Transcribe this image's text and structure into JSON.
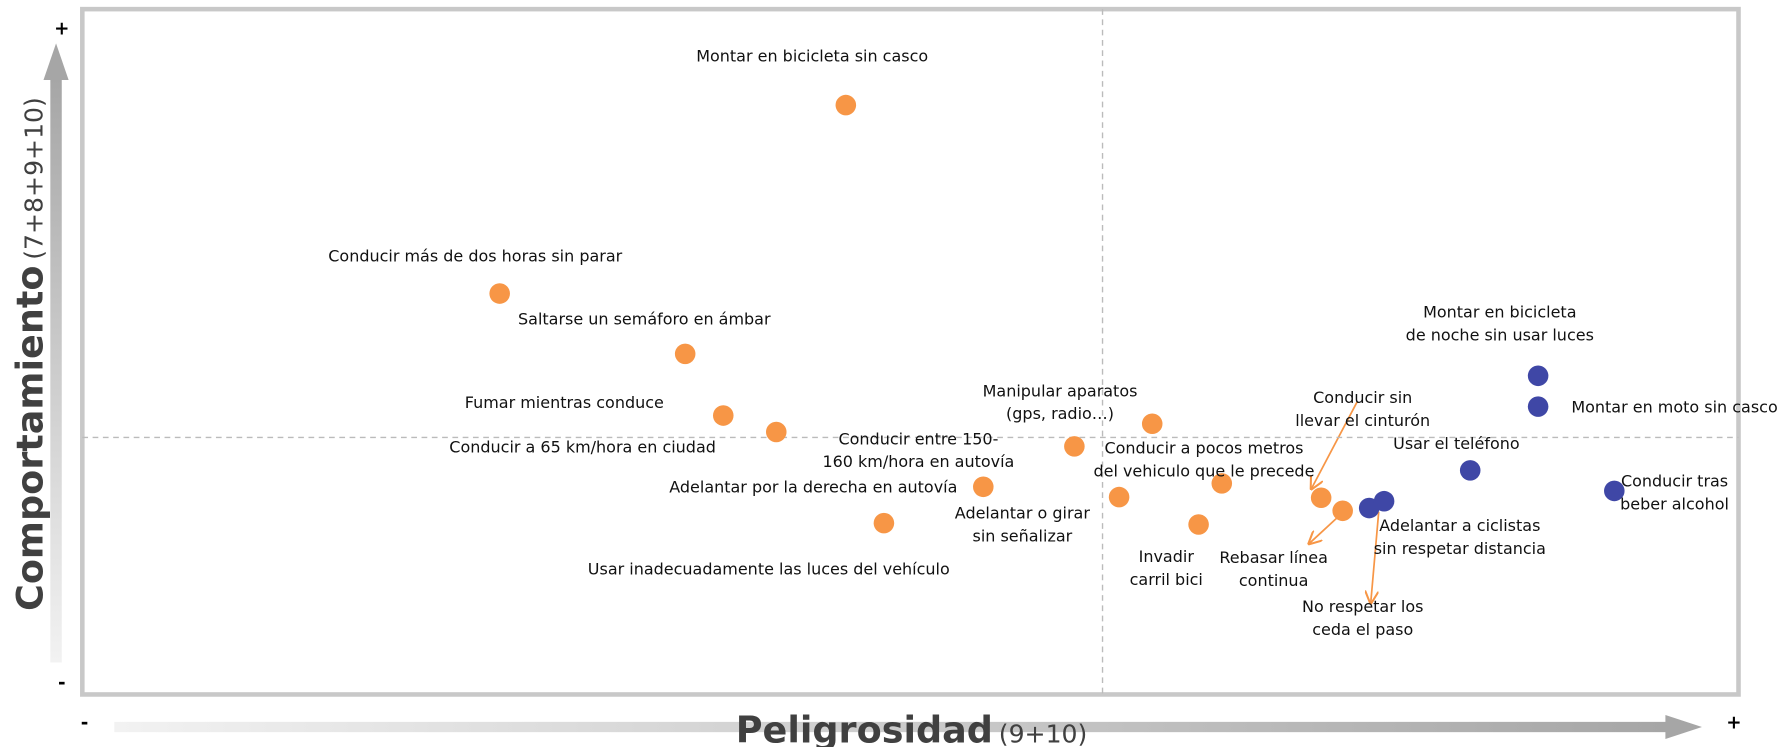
{
  "chart_data": {
    "type": "scatter",
    "xlabel": "Peligrosidad",
    "xlabel_note": "(9+10)",
    "ylabel": "Comportamiento",
    "ylabel_note": "(7+8+9+10)",
    "x_low": "-",
    "x_high": "+",
    "y_low": "-",
    "y_high": "+",
    "xlim": [
      0,
      100
    ],
    "ylim": [
      0,
      100
    ],
    "xdivider": 61.6,
    "ydivider": 37.5,
    "points": [
      {
        "label": [
          "Montar en bicicleta sin casco"
        ],
        "x": 46.1,
        "y": 86.0,
        "color": "#f79646"
      },
      {
        "label": [
          "Conducir más de dos horas sin parar"
        ],
        "x": 25.2,
        "y": 58.5,
        "color": "#f79646"
      },
      {
        "label": [
          "Saltarse un semáforo en ámbar"
        ],
        "x": 36.4,
        "y": 49.7,
        "color": "#f79646"
      },
      {
        "label": [
          "Fumar mientras conduce"
        ],
        "x": 38.7,
        "y": 40.7,
        "color": "#f79646"
      },
      {
        "label": [
          "Conducir a 65 km/hora en ciudad"
        ],
        "x": 41.9,
        "y": 38.3,
        "color": "#f79646"
      },
      {
        "label": [
          "Conducir entre 150-",
          "160 km/hora en autovía"
        ],
        "x": 59.9,
        "y": 36.2,
        "color": "#f79646"
      },
      {
        "label": [
          "Adelantar por la derecha en autovía"
        ],
        "x": 54.4,
        "y": 30.3,
        "color": "#f79646"
      },
      {
        "label": [
          "Usar inadecuadamente las luces del vehículo"
        ],
        "x": 48.4,
        "y": 25.0,
        "color": "#f79646"
      },
      {
        "label": [
          "Manipular aparatos",
          "(gps, radio…)"
        ],
        "x": 64.6,
        "y": 39.5,
        "color": "#f79646"
      },
      {
        "label": [
          "Adelantar o girar",
          "sin señalizar"
        ],
        "x": 62.6,
        "y": 28.8,
        "color": "#f79646"
      },
      {
        "label": [
          "Conducir a pocos metros",
          "del vehiculo que le precede"
        ],
        "x": 68.8,
        "y": 30.8,
        "color": "#f79646"
      },
      {
        "label": [
          "Invadir",
          "carril bici"
        ],
        "x": 67.4,
        "y": 24.8,
        "color": "#f79646"
      },
      {
        "label": [
          "Conducir sin",
          "llevar el cinturón"
        ],
        "x": 74.8,
        "y": 28.7,
        "color": "#f79646"
      },
      {
        "label": [
          "Rebasar línea",
          "continua"
        ],
        "x": 76.1,
        "y": 26.8,
        "color": "#f79646"
      },
      {
        "label": [
          "No respetar los",
          "ceda el paso"
        ],
        "x": 77.7,
        "y": 27.2,
        "color": "#3f47a6"
      },
      {
        "label": [
          "Adelantar a ciclistas",
          "sin respetar distancia"
        ],
        "x": 78.6,
        "y": 28.2,
        "color": "#3f47a6"
      },
      {
        "label": [
          "Usar el teléfono"
        ],
        "x": 83.8,
        "y": 32.7,
        "color": "#3f47a6"
      },
      {
        "label": [
          "Montar en bicicleta",
          "de noche sin usar luces"
        ],
        "x": 87.9,
        "y": 46.5,
        "color": "#3f47a6"
      },
      {
        "label": [
          "Montar en moto sin casco"
        ],
        "x": 87.9,
        "y": 42.0,
        "color": "#3f47a6"
      },
      {
        "label": [
          "Conducir tras",
          "beber alcohol"
        ],
        "x": 92.5,
        "y": 29.7,
        "color": "#3f47a6"
      }
    ]
  }
}
